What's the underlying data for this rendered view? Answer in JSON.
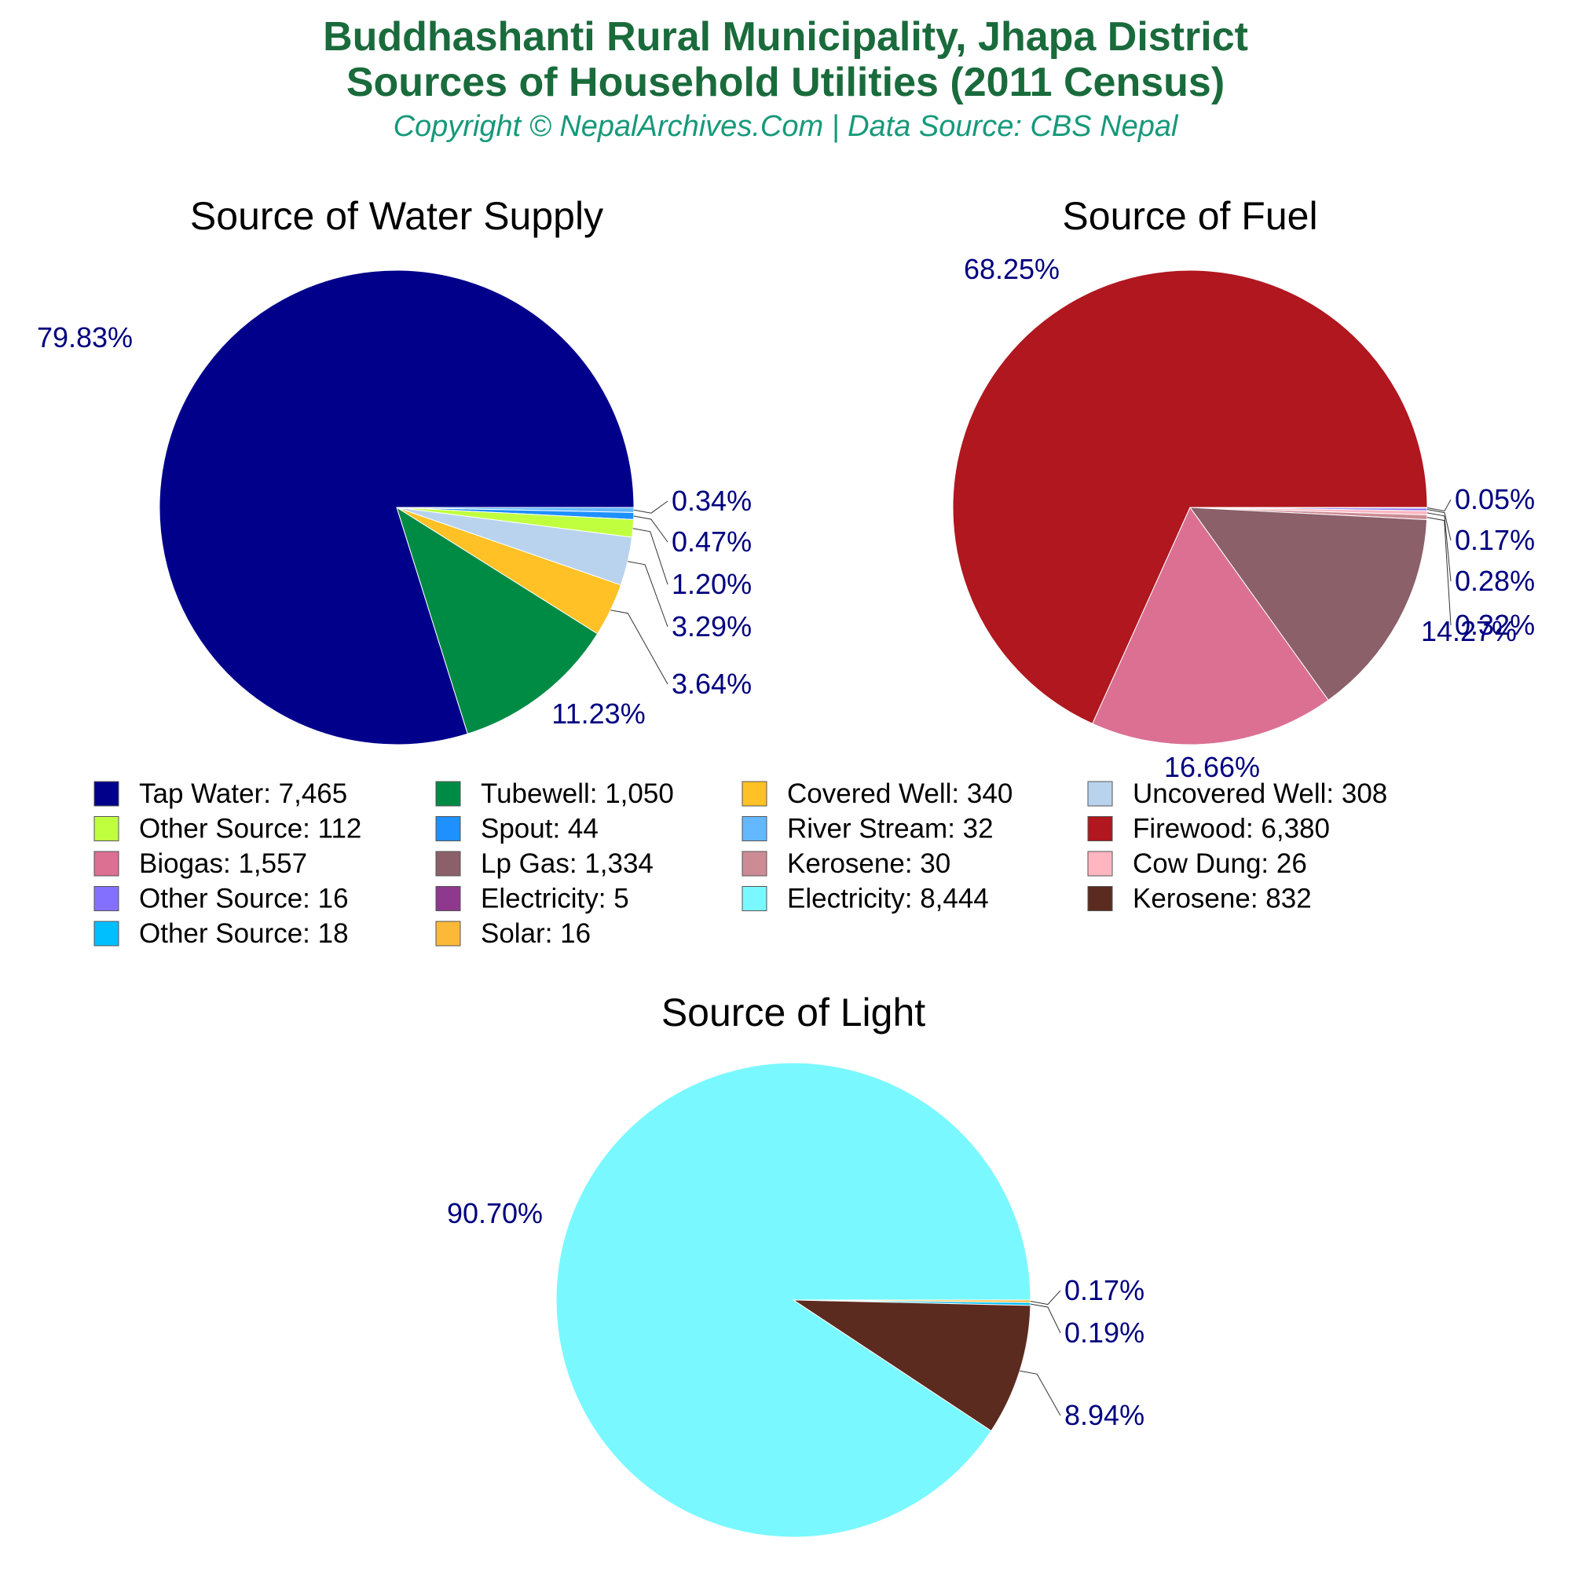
{
  "header": {
    "title_line1": "Buddhashanti Rural Municipality, Jhapa District",
    "title_line2": "Sources of Household Utilities (2011 Census)",
    "subtitle": "Copyright © NepalArchives.Com | Data Source: CBS Nepal"
  },
  "chart_data": [
    {
      "type": "pie",
      "title": "Source of Water Supply",
      "slices": [
        {
          "label": "Tap Water",
          "value": 7465,
          "value_text": "7,465",
          "pct": "79.83%",
          "color": "#00008b"
        },
        {
          "label": "Tubewell",
          "value": 1050,
          "value_text": "1,050",
          "pct": "11.23%",
          "color": "#008b45"
        },
        {
          "label": "Covered Well",
          "value": 340,
          "value_text": "340",
          "pct": "3.64%",
          "color": "#ffc125"
        },
        {
          "label": "Uncovered Well",
          "value": 308,
          "value_text": "308",
          "pct": "3.29%",
          "color": "#b9d3ee"
        },
        {
          "label": "Other Source",
          "value": 112,
          "value_text": "112",
          "pct": "1.20%",
          "color": "#c0ff3e"
        },
        {
          "label": "Spout",
          "value": 44,
          "value_text": "44",
          "pct": "0.47%",
          "color": "#1e90ff"
        },
        {
          "label": "River Stream",
          "value": 32,
          "value_text": "32",
          "pct": "0.34%",
          "color": "#63b8ff"
        }
      ]
    },
    {
      "type": "pie",
      "title": "Source of Fuel",
      "slices": [
        {
          "label": "Firewood",
          "value": 6380,
          "value_text": "6,380",
          "pct": "68.25%",
          "color": "#b0171f"
        },
        {
          "label": "Biogas",
          "value": 1557,
          "value_text": "1,557",
          "pct": "16.66%",
          "color": "#db7093"
        },
        {
          "label": "Lp Gas",
          "value": 1334,
          "value_text": "1,334",
          "pct": "14.27%",
          "color": "#8b6069"
        },
        {
          "label": "Kerosene",
          "value": 30,
          "value_text": "30",
          "pct": "0.32%",
          "color": "#cd8c95"
        },
        {
          "label": "Cow Dung",
          "value": 26,
          "value_text": "26",
          "pct": "0.28%",
          "color": "#ffb6c1"
        },
        {
          "label": "Other Source",
          "value": 16,
          "value_text": "16",
          "pct": "0.17%",
          "color": "#8470ff"
        },
        {
          "label": "Electricity",
          "value": 5,
          "value_text": "5",
          "pct": "0.05%",
          "color": "#8e388e"
        }
      ]
    },
    {
      "type": "pie",
      "title": "Source of Light",
      "slices": [
        {
          "label": "Electricity",
          "value": 8444,
          "value_text": "8,444",
          "pct": "90.70%",
          "color": "#7af8ff"
        },
        {
          "label": "Kerosene",
          "value": 832,
          "value_text": "832",
          "pct": "8.94%",
          "color": "#5c2b1f"
        },
        {
          "label": "Other Source",
          "value": 18,
          "value_text": "18",
          "pct": "0.19%",
          "color": "#00bfff"
        },
        {
          "label": "Solar",
          "value": 16,
          "value_text": "16",
          "pct": "0.17%",
          "color": "#fcb938"
        }
      ]
    }
  ]
}
